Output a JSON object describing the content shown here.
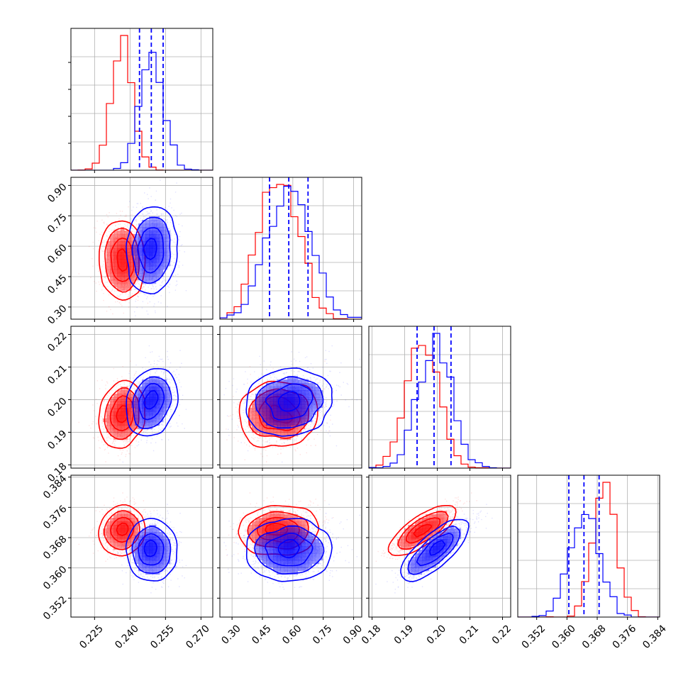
{
  "chart_data": {
    "type": "corner",
    "parameters": [
      {
        "id": "p1",
        "range": [
          0.215,
          0.275
        ],
        "ticks": [
          "0.225",
          "0.240",
          "0.255",
          "0.270"
        ],
        "tick_values": [
          0.225,
          0.24,
          0.255,
          0.27
        ]
      },
      {
        "id": "p2",
        "range": [
          0.24,
          0.94
        ],
        "ticks": [
          "0.30",
          "0.45",
          "0.60",
          "0.75",
          "0.90"
        ],
        "tick_values": [
          0.3,
          0.45,
          0.6,
          0.75,
          0.9
        ]
      },
      {
        "id": "p3",
        "range": [
          0.179,
          0.2225
        ],
        "ticks": [
          "0.18",
          "0.19",
          "0.20",
          "0.21",
          "0.22"
        ],
        "tick_values": [
          0.18,
          0.19,
          0.2,
          0.21,
          0.22
        ]
      },
      {
        "id": "p4",
        "range": [
          0.347,
          0.3845
        ],
        "ticks": [
          "0.352",
          "0.360",
          "0.368",
          "0.376",
          "0.384"
        ],
        "tick_values": [
          0.352,
          0.36,
          0.368,
          0.376,
          0.384
        ]
      }
    ],
    "series": [
      {
        "color": "#ff0000",
        "mean": [
          0.2368,
          0.53,
          0.1955,
          0.37
        ],
        "sd": [
          0.0045,
          0.095,
          0.0049,
          0.003
        ],
        "corr": [
          [
            1,
            -0.05,
            0.15,
            0.1
          ],
          [
            -0.05,
            1,
            0.05,
            0.05
          ],
          [
            0.15,
            0.05,
            1,
            0.85
          ],
          [
            0.1,
            0.05,
            0.85,
            1
          ]
        ]
      },
      {
        "color": "#0000ff",
        "mean": [
          0.249,
          0.58,
          0.199,
          0.3645
        ],
        "sd": [
          0.005,
          0.105,
          0.0052,
          0.004
        ],
        "corr": [
          [
            1,
            0.1,
            0.25,
            0.0
          ],
          [
            0.1,
            1,
            0.15,
            0.05
          ],
          [
            0.25,
            0.15,
            1,
            0.85
          ],
          [
            0.0,
            0.05,
            0.85,
            1
          ]
        ]
      }
    ],
    "quantile_lines": {
      "color": "#0000ff",
      "values": [
        [
          0.244,
          0.249,
          0.254
        ],
        [
          0.485,
          0.58,
          0.675
        ],
        [
          0.1938,
          0.199,
          0.2042
        ],
        [
          0.3605,
          0.3645,
          0.3685
        ]
      ]
    },
    "legend": null,
    "grid": true
  }
}
